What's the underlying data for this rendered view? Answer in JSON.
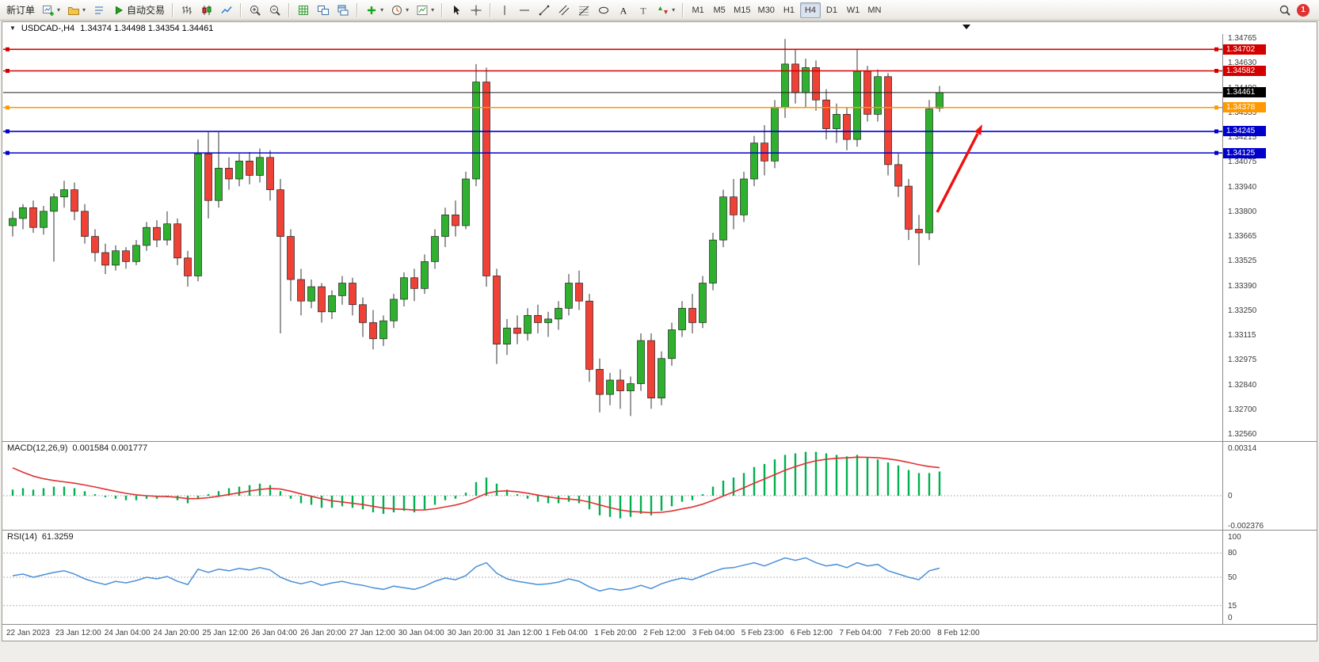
{
  "toolbar": {
    "items": [
      {
        "name": "new-order-button",
        "label": "新订单"
      },
      {
        "name": "new-chart-button",
        "icon": "chart-add",
        "caret": true
      },
      {
        "name": "profiles-button",
        "icon": "profiles",
        "caret": true
      },
      {
        "name": "market-watch-button",
        "icon": "market-watch"
      },
      {
        "name": "autotrading-button",
        "icon": "autotrading",
        "label": "自动交易"
      },
      {
        "type": "sep"
      },
      {
        "name": "bar-chart-button",
        "icon": "bars"
      },
      {
        "name": "candlestick-chart-button",
        "icon": "candles"
      },
      {
        "name": "line-chart-button",
        "icon": "line"
      },
      {
        "type": "sep"
      },
      {
        "name": "zoom-in-button",
        "icon": "zoom-in"
      },
      {
        "name": "zoom-out-button",
        "icon": "zoom-out"
      },
      {
        "type": "sep"
      },
      {
        "name": "auto-arrange-button",
        "icon": "grid"
      },
      {
        "name": "tile-windows-button",
        "icon": "tile"
      },
      {
        "name": "cascade-windows-button",
        "icon": "cascade"
      },
      {
        "type": "sep"
      },
      {
        "name": "indicators-button",
        "icon": "indicators",
        "caret": true
      },
      {
        "name": "periods-button",
        "icon": "clock",
        "caret": true
      },
      {
        "name": "templates-button",
        "icon": "template",
        "caret": true
      },
      {
        "type": "sep"
      },
      {
        "name": "cursor-button",
        "icon": "cursor"
      },
      {
        "name": "crosshair-button",
        "icon": "crosshair"
      },
      {
        "type": "sep"
      },
      {
        "name": "vertical-line-button",
        "icon": "vline"
      },
      {
        "name": "horizontal-line-button",
        "icon": "hline"
      },
      {
        "name": "trendline-button",
        "icon": "trendline"
      },
      {
        "name": "channel-button",
        "icon": "channel"
      },
      {
        "name": "fibonacci-button",
        "icon": "fibonacci"
      },
      {
        "name": "shapes-button",
        "icon": "shapes"
      },
      {
        "name": "text-button",
        "icon": "text-a"
      },
      {
        "name": "label-button",
        "icon": "text-t"
      },
      {
        "name": "arrows-button",
        "icon": "arrows",
        "caret": true
      },
      {
        "type": "sep"
      },
      {
        "name": "timeframe-m1",
        "label": "M1",
        "tf": true
      },
      {
        "name": "timeframe-m5",
        "label": "M5",
        "tf": true
      },
      {
        "name": "timeframe-m15",
        "label": "M15",
        "tf": true
      },
      {
        "name": "timeframe-m30",
        "label": "M30",
        "tf": true
      },
      {
        "name": "timeframe-h1",
        "label": "H1",
        "tf": true
      },
      {
        "name": "timeframe-h4",
        "label": "H4",
        "tf": true,
        "active": true
      },
      {
        "name": "timeframe-d1",
        "label": "D1",
        "tf": true
      },
      {
        "name": "timeframe-w1",
        "label": "W1",
        "tf": true
      },
      {
        "name": "timeframe-mn",
        "label": "MN",
        "tf": true
      },
      {
        "type": "spacer"
      },
      {
        "name": "search-button",
        "icon": "search"
      },
      {
        "type": "badge",
        "name": "notifications-badge",
        "label": "1"
      }
    ]
  },
  "chart": {
    "symbol_period": "USDCAD-,H4",
    "ohlc_line": "1.34374 1.34498 1.34354 1.34461",
    "one_click_arrow": "▼",
    "price_scale_labels": [
      "1.34765",
      "1.34630",
      "1.34490",
      "1.34355",
      "1.34215",
      "1.34075",
      "1.33940",
      "1.33800",
      "1.33665",
      "1.33525",
      "1.33390",
      "1.33250",
      "1.33115",
      "1.32975",
      "1.32840",
      "1.32700",
      "1.32560"
    ],
    "time_labels": [
      "22 Jan 2023",
      "23 Jan 12:00",
      "24 Jan 04:00",
      "24 Jan 20:00",
      "25 Jan 12:00",
      "26 Jan 04:00",
      "26 Jan 20:00",
      "27 Jan 12:00",
      "30 Jan 04:00",
      "30 Jan 20:00",
      "31 Jan 12:00",
      "1 Feb 04:00",
      "1 Feb 20:00",
      "2 Feb 12:00",
      "3 Feb 04:00",
      "5 Feb 23:00",
      "6 Feb 12:00",
      "7 Feb 04:00",
      "7 Feb 20:00",
      "8 Feb 12:00"
    ],
    "levels": [
      {
        "name": "resistance-line-1",
        "label": "1.34702",
        "price": 1.34702,
        "color": "#d40000"
      },
      {
        "name": "resistance-line-2",
        "label": "1.34582",
        "price": 1.34582,
        "color": "#d40000"
      },
      {
        "name": "pivot-line",
        "label": "1.34378",
        "price": 1.34378,
        "color": "#ff9900"
      },
      {
        "name": "support-line-1",
        "label": "1.34245",
        "price": 1.34245,
        "color": "#0000cd"
      },
      {
        "name": "support-line-2",
        "label": "1.34125",
        "price": 1.34125,
        "color": "#0000cd"
      }
    ],
    "current_price": {
      "name": "current-price",
      "label": "1.34461",
      "price": 1.34461,
      "color": "#000000"
    },
    "colors": {
      "bull": "#2fb12f",
      "bear": "#ef4136",
      "wick": "#333333",
      "arrow": "#ee1111"
    }
  },
  "chart_data": {
    "type": "candlestick",
    "symbol": "USDCAD",
    "timeframe": "H4",
    "y_range": [
      1.3256,
      1.34765
    ],
    "ohlc": [
      [
        1.3372,
        1.338,
        1.3366,
        1.3376
      ],
      [
        1.3376,
        1.3384,
        1.337,
        1.3382
      ],
      [
        1.3382,
        1.3386,
        1.3368,
        1.3371
      ],
      [
        1.3371,
        1.3383,
        1.3367,
        1.338
      ],
      [
        1.338,
        1.339,
        1.3352,
        1.3388
      ],
      [
        1.3388,
        1.3397,
        1.3382,
        1.3392
      ],
      [
        1.3392,
        1.3396,
        1.3375,
        1.338
      ],
      [
        1.338,
        1.3384,
        1.3362,
        1.3366
      ],
      [
        1.3366,
        1.337,
        1.3352,
        1.3357
      ],
      [
        1.3357,
        1.3362,
        1.3345,
        1.335
      ],
      [
        1.335,
        1.3361,
        1.3347,
        1.3358
      ],
      [
        1.3358,
        1.336,
        1.3348,
        1.3352
      ],
      [
        1.3352,
        1.3364,
        1.335,
        1.3361
      ],
      [
        1.3361,
        1.3374,
        1.3358,
        1.3371
      ],
      [
        1.3371,
        1.3375,
        1.336,
        1.3364
      ],
      [
        1.3364,
        1.338,
        1.3361,
        1.3373
      ],
      [
        1.3373,
        1.3376,
        1.335,
        1.3354
      ],
      [
        1.3354,
        1.3358,
        1.3338,
        1.3344
      ],
      [
        1.3344,
        1.342,
        1.3341,
        1.3412
      ],
      [
        1.3412,
        1.3424,
        1.3376,
        1.3386
      ],
      [
        1.3386,
        1.3424,
        1.3382,
        1.3404
      ],
      [
        1.3404,
        1.341,
        1.3392,
        1.3398
      ],
      [
        1.3398,
        1.3412,
        1.3394,
        1.3408
      ],
      [
        1.3408,
        1.3413,
        1.3395,
        1.34
      ],
      [
        1.34,
        1.3415,
        1.3396,
        1.341
      ],
      [
        1.341,
        1.3414,
        1.3386,
        1.3392
      ],
      [
        1.3392,
        1.3398,
        1.3312,
        1.3366
      ],
      [
        1.3366,
        1.337,
        1.333,
        1.3342
      ],
      [
        1.3342,
        1.3348,
        1.3322,
        1.333
      ],
      [
        1.333,
        1.3342,
        1.3326,
        1.3338
      ],
      [
        1.3338,
        1.334,
        1.3318,
        1.3324
      ],
      [
        1.3324,
        1.3336,
        1.332,
        1.3333
      ],
      [
        1.3333,
        1.3344,
        1.3328,
        1.334
      ],
      [
        1.334,
        1.3343,
        1.3322,
        1.3328
      ],
      [
        1.3328,
        1.3332,
        1.331,
        1.3318
      ],
      [
        1.3318,
        1.3325,
        1.3303,
        1.3309
      ],
      [
        1.3309,
        1.3322,
        1.3305,
        1.3319
      ],
      [
        1.3319,
        1.3334,
        1.3315,
        1.3331
      ],
      [
        1.3331,
        1.3346,
        1.3327,
        1.3343
      ],
      [
        1.3343,
        1.3348,
        1.333,
        1.3337
      ],
      [
        1.3337,
        1.3356,
        1.3334,
        1.3352
      ],
      [
        1.3352,
        1.337,
        1.3348,
        1.3366
      ],
      [
        1.3366,
        1.3382,
        1.336,
        1.3378
      ],
      [
        1.3378,
        1.3386,
        1.3366,
        1.3372
      ],
      [
        1.3372,
        1.3402,
        1.337,
        1.3398
      ],
      [
        1.3398,
        1.3462,
        1.3394,
        1.3452
      ],
      [
        1.3452,
        1.346,
        1.3338,
        1.3344
      ],
      [
        1.3344,
        1.3348,
        1.3295,
        1.3306
      ],
      [
        1.3306,
        1.332,
        1.33,
        1.3315
      ],
      [
        1.3315,
        1.3322,
        1.3306,
        1.3312
      ],
      [
        1.3312,
        1.3326,
        1.3308,
        1.3322
      ],
      [
        1.3322,
        1.3328,
        1.3312,
        1.3318
      ],
      [
        1.3318,
        1.3324,
        1.331,
        1.332
      ],
      [
        1.332,
        1.333,
        1.3314,
        1.3326
      ],
      [
        1.3326,
        1.3345,
        1.3322,
        1.334
      ],
      [
        1.334,
        1.3347,
        1.3325,
        1.333
      ],
      [
        1.333,
        1.3334,
        1.3285,
        1.3292
      ],
      [
        1.3292,
        1.3298,
        1.3268,
        1.3278
      ],
      [
        1.3278,
        1.329,
        1.3272,
        1.3286
      ],
      [
        1.3286,
        1.3292,
        1.327,
        1.328
      ],
      [
        1.328,
        1.3288,
        1.3266,
        1.3284
      ],
      [
        1.3284,
        1.3312,
        1.328,
        1.3308
      ],
      [
        1.3308,
        1.3312,
        1.327,
        1.3276
      ],
      [
        1.3276,
        1.3302,
        1.3272,
        1.3298
      ],
      [
        1.3298,
        1.3318,
        1.3294,
        1.3314
      ],
      [
        1.3314,
        1.333,
        1.331,
        1.3326
      ],
      [
        1.3326,
        1.3334,
        1.3312,
        1.3318
      ],
      [
        1.3318,
        1.3344,
        1.3315,
        1.334
      ],
      [
        1.334,
        1.3368,
        1.3336,
        1.3364
      ],
      [
        1.3364,
        1.3392,
        1.336,
        1.3388
      ],
      [
        1.3388,
        1.3398,
        1.337,
        1.3378
      ],
      [
        1.3378,
        1.3402,
        1.3374,
        1.3398
      ],
      [
        1.3398,
        1.3422,
        1.3394,
        1.3418
      ],
      [
        1.3418,
        1.3428,
        1.34,
        1.3408
      ],
      [
        1.3408,
        1.3442,
        1.3404,
        1.3438
      ],
      [
        1.3438,
        1.3476,
        1.3432,
        1.3462
      ],
      [
        1.3462,
        1.347,
        1.344,
        1.3446
      ],
      [
        1.3446,
        1.3465,
        1.3438,
        1.346
      ],
      [
        1.346,
        1.3464,
        1.3436,
        1.3442
      ],
      [
        1.3442,
        1.3448,
        1.342,
        1.3426
      ],
      [
        1.3426,
        1.344,
        1.3418,
        1.3434
      ],
      [
        1.3434,
        1.3438,
        1.3414,
        1.342
      ],
      [
        1.342,
        1.347,
        1.3416,
        1.3458
      ],
      [
        1.3458,
        1.3461,
        1.343,
        1.3434
      ],
      [
        1.3434,
        1.3459,
        1.343,
        1.3455
      ],
      [
        1.3455,
        1.3457,
        1.34,
        1.3406
      ],
      [
        1.3406,
        1.3412,
        1.3388,
        1.3394
      ],
      [
        1.3394,
        1.3398,
        1.3364,
        1.337
      ],
      [
        1.337,
        1.3378,
        1.335,
        1.3368
      ],
      [
        1.3368,
        1.3442,
        1.3364,
        1.3437
      ],
      [
        1.34374,
        1.34498,
        1.34354,
        1.34461
      ]
    ],
    "indicators": {
      "macd": {
        "label": "MACD(12,26,9)",
        "values_text": "0.001584 0.001777",
        "scale_labels": [
          "0.00314",
          "0",
          "-0.002376"
        ],
        "scale_values": [
          0.00314,
          0,
          -0.002376
        ],
        "hist_color": "#00b050",
        "signal_color": "#e03131",
        "histogram": [
          0.0004,
          0.0005,
          0.0004,
          0.0005,
          0.0006,
          0.0006,
          0.0005,
          0.0003,
          0.0001,
          -0.0001,
          -0.0002,
          -0.0003,
          -0.0003,
          -0.0002,
          -0.0002,
          -0.0001,
          -0.0003,
          -0.0005,
          -0.0002,
          0.0001,
          0.0003,
          0.0005,
          0.0006,
          0.0007,
          0.0008,
          0.0007,
          0.0003,
          -0.0002,
          -0.0005,
          -0.0006,
          -0.0008,
          -0.0008,
          -0.0007,
          -0.0008,
          -0.0009,
          -0.0011,
          -0.0012,
          -0.0011,
          -0.001,
          -0.0011,
          -0.0009,
          -0.0006,
          -0.0003,
          -0.0002,
          0.0002,
          0.0009,
          0.0012,
          0.0008,
          0.0004,
          0.0001,
          -0.0002,
          -0.0004,
          -0.0005,
          -0.0005,
          -0.0004,
          -0.0005,
          -0.0009,
          -0.0013,
          -0.0014,
          -0.0015,
          -0.0014,
          -0.0012,
          -0.0013,
          -0.001,
          -0.0007,
          -0.0004,
          -0.0003,
          0.0001,
          0.0006,
          0.001,
          0.0012,
          0.0015,
          0.0019,
          0.0021,
          0.0024,
          0.0027,
          0.0028,
          0.0029,
          0.0029,
          0.0028,
          0.0027,
          0.0026,
          0.0027,
          0.0025,
          0.0024,
          0.0022,
          0.002,
          0.0017,
          0.0015,
          0.0015,
          0.0016
        ]
      },
      "rsi": {
        "label": "RSI(14)",
        "value_text": "61.3259",
        "scale_labels": [
          "100",
          "80",
          "50",
          "15",
          "0"
        ],
        "scale_values": [
          100,
          80,
          50,
          15,
          0
        ],
        "levels": [
          80,
          50,
          15
        ],
        "line_color": "#4a90d9",
        "values": [
          52,
          54,
          50,
          53,
          56,
          58,
          54,
          48,
          44,
          41,
          45,
          43,
          46,
          50,
          48,
          51,
          45,
          41,
          60,
          56,
          60,
          58,
          61,
          59,
          62,
          59,
          50,
          45,
          42,
          45,
          40,
          43,
          45,
          42,
          40,
          37,
          35,
          39,
          37,
          35,
          39,
          45,
          49,
          47,
          52,
          63,
          68,
          55,
          48,
          45,
          43,
          41,
          42,
          44,
          48,
          45,
          38,
          33,
          36,
          34,
          36,
          40,
          36,
          42,
          46,
          49,
          47,
          52,
          57,
          61,
          62,
          65,
          68,
          64,
          69,
          74,
          71,
          74,
          68,
          64,
          66,
          62,
          68,
          64,
          66,
          58,
          54,
          50,
          47,
          58,
          61.3
        ]
      }
    }
  }
}
